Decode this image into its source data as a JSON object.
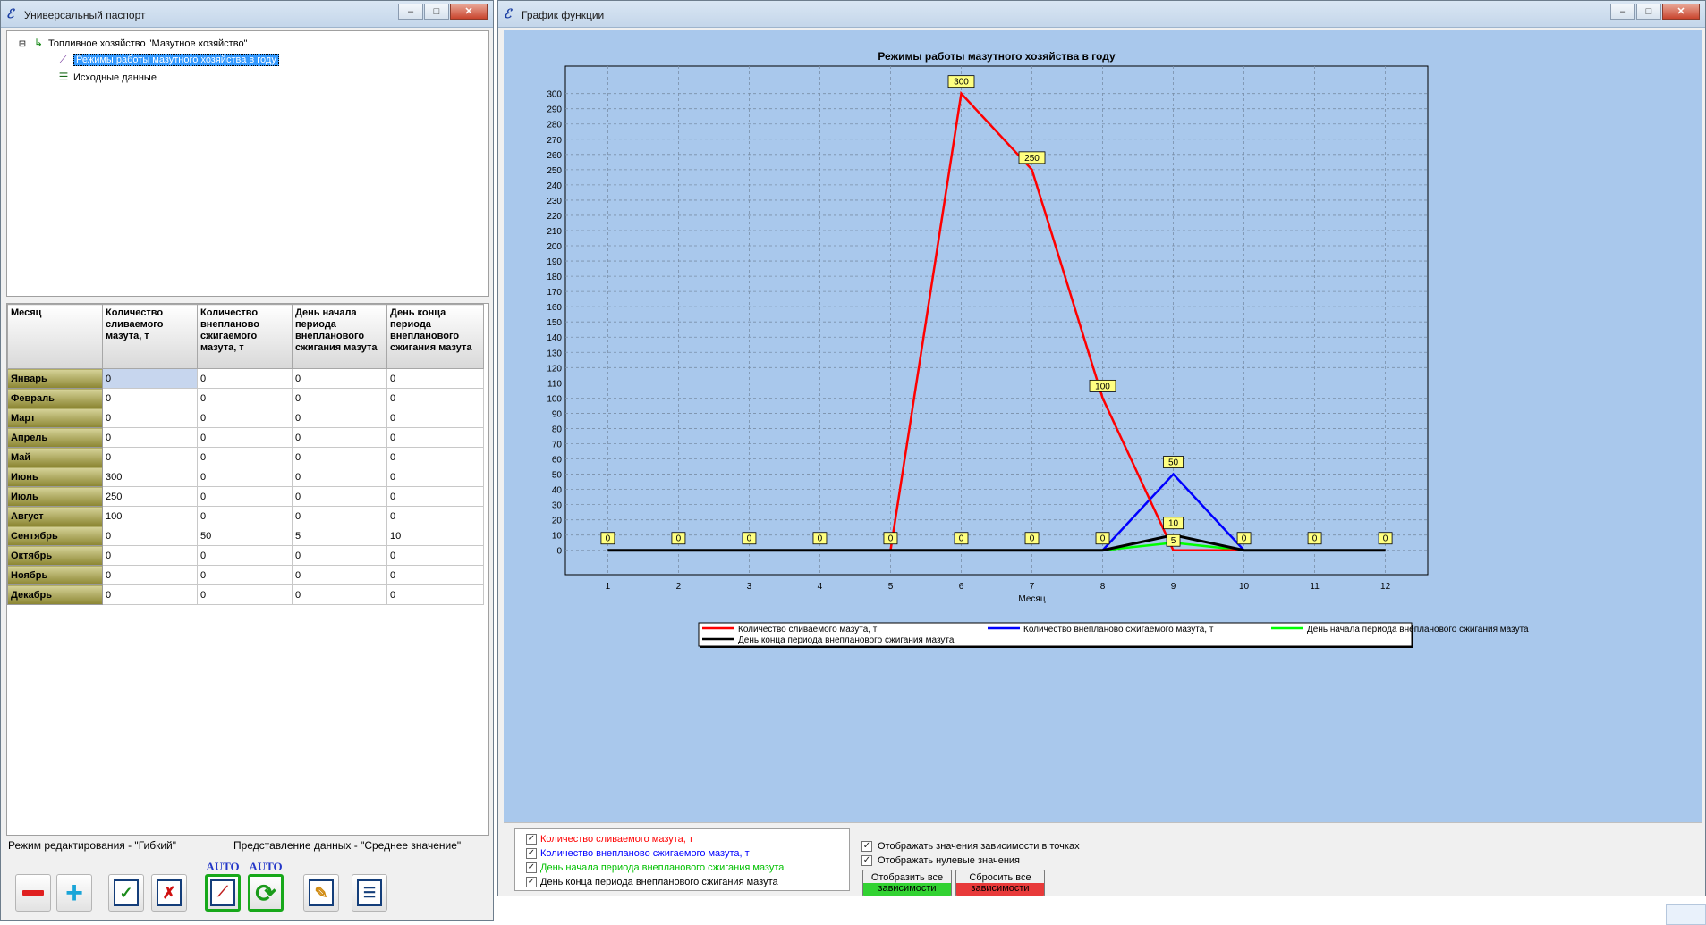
{
  "left_window": {
    "title": "Универсальный паспорт",
    "tree": {
      "root": "Топливное хозяйство \"Мазутное хозяйство\"",
      "children": [
        "Режимы работы мазутного хозяйства в году",
        "Исходные данные"
      ]
    },
    "table": {
      "columns": [
        "Месяц",
        "Количество сливаемого мазута, т",
        "Количество внепланово сжигаемого мазута, т",
        "День начала периода внепланового сжигания мазута",
        "День конца периода внепланового сжигания мазута"
      ],
      "rows": [
        {
          "month": "Январь",
          "values": [
            "0",
            "0",
            "0",
            "0"
          ]
        },
        {
          "month": "Февраль",
          "values": [
            "0",
            "0",
            "0",
            "0"
          ]
        },
        {
          "month": "Март",
          "values": [
            "0",
            "0",
            "0",
            "0"
          ]
        },
        {
          "month": "Апрель",
          "values": [
            "0",
            "0",
            "0",
            "0"
          ]
        },
        {
          "month": "Май",
          "values": [
            "0",
            "0",
            "0",
            "0"
          ]
        },
        {
          "month": "Июнь",
          "values": [
            "300",
            "0",
            "0",
            "0"
          ]
        },
        {
          "month": "Июль",
          "values": [
            "250",
            "0",
            "0",
            "0"
          ]
        },
        {
          "month": "Август",
          "values": [
            "100",
            "0",
            "0",
            "0"
          ]
        },
        {
          "month": "Сентябрь",
          "values": [
            "0",
            "50",
            "5",
            "10"
          ]
        },
        {
          "month": "Октябрь",
          "values": [
            "0",
            "0",
            "0",
            "0"
          ]
        },
        {
          "month": "Ноябрь",
          "values": [
            "0",
            "0",
            "0",
            "0"
          ]
        },
        {
          "month": "Декабрь",
          "values": [
            "0",
            "0",
            "0",
            "0"
          ]
        }
      ]
    },
    "status": {
      "edit_mode": "Режим редактирования - \"Гибкий\"",
      "data_view": "Представление данных - \"Среднее значение\""
    },
    "toolbar": {
      "auto_label": "AUTO"
    }
  },
  "right_window": {
    "title": "График функции",
    "options": {
      "show_values": "Отображать значения зависимости в точках",
      "show_zero": "Отображать нулевые значения"
    },
    "buttons": {
      "show_all": "Отобразить все зависимости",
      "reset_all": "Сбросить все зависимости"
    }
  },
  "colors": {
    "series1": "#ff0000",
    "series2": "#0000ff",
    "series3": "#00ff00",
    "series4": "#000000",
    "plot_bg": "#a9c8ec",
    "label_bg": "#ffff80"
  },
  "chart_data": {
    "type": "line",
    "title": "Режимы работы мазутного хозяйства в году",
    "xlabel": "Месяц",
    "ylabel": "",
    "x": [
      1,
      2,
      3,
      4,
      5,
      6,
      7,
      8,
      9,
      10,
      11,
      12
    ],
    "xlim": [
      0.4,
      12.6
    ],
    "ylim": [
      -16,
      318
    ],
    "yticks": [
      0,
      10,
      20,
      30,
      40,
      50,
      60,
      70,
      80,
      90,
      100,
      110,
      120,
      130,
      140,
      150,
      160,
      170,
      180,
      190,
      200,
      210,
      220,
      230,
      240,
      250,
      260,
      270,
      280,
      290,
      300
    ],
    "xticks": [
      "1",
      "2",
      "3",
      "4",
      "5",
      "6",
      "7",
      "8",
      "9",
      "10",
      "11",
      "12"
    ],
    "grid": true,
    "legend": "bottom",
    "series": [
      {
        "name": "Количество сливаемого мазута, т",
        "color": "#ff0000",
        "values": [
          0,
          0,
          0,
          0,
          0,
          300,
          250,
          100,
          0,
          0,
          0,
          0
        ]
      },
      {
        "name": "Количество внепланово сжигаемого мазута, т",
        "color": "#0000ff",
        "values": [
          0,
          0,
          0,
          0,
          0,
          0,
          0,
          0,
          50,
          0,
          0,
          0
        ]
      },
      {
        "name": "День начала периода внепланового сжигания мазута",
        "color": "#00ff00",
        "values": [
          0,
          0,
          0,
          0,
          0,
          0,
          0,
          0,
          5,
          0,
          0,
          0
        ]
      },
      {
        "name": "День конца периода внепланового сжигания мазута",
        "color": "#000000",
        "values": [
          0,
          0,
          0,
          0,
          0,
          0,
          0,
          0,
          10,
          0,
          0,
          0
        ]
      }
    ],
    "point_labels": [
      {
        "x": 1,
        "text": "0"
      },
      {
        "x": 2,
        "text": "0"
      },
      {
        "x": 3,
        "text": "0"
      },
      {
        "x": 4,
        "text": "0"
      },
      {
        "x": 5,
        "text": "0"
      },
      {
        "x": 6,
        "text": "0"
      },
      {
        "x": 7,
        "text": "0"
      },
      {
        "x": 8,
        "text": "0"
      },
      {
        "x": 10,
        "text": "0"
      },
      {
        "x": 11,
        "text": "0"
      },
      {
        "x": 12,
        "text": "0"
      },
      {
        "x": 6,
        "y": 300,
        "text": "300"
      },
      {
        "x": 7,
        "y": 250,
        "text": "250"
      },
      {
        "x": 8,
        "y": 100,
        "text": "100"
      },
      {
        "x": 9,
        "y": 50,
        "text": "50"
      },
      {
        "x": 9,
        "y": 10,
        "text": "10"
      },
      {
        "x": 9,
        "y": 5,
        "text": "5"
      }
    ]
  }
}
